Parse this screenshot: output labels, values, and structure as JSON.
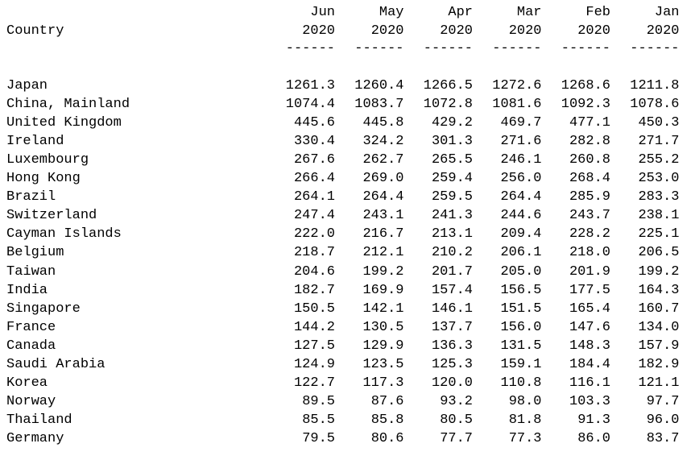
{
  "header": {
    "country": "Country",
    "columns": [
      {
        "month": "Jun",
        "year": "2020"
      },
      {
        "month": "May",
        "year": "2020"
      },
      {
        "month": "Apr",
        "year": "2020"
      },
      {
        "month": "Mar",
        "year": "2020"
      },
      {
        "month": "Feb",
        "year": "2020"
      },
      {
        "month": "Jan",
        "year": "2020"
      }
    ],
    "separator": "------"
  },
  "table": {
    "rows": [
      [
        "Japan",
        "1261.3",
        "1260.4",
        "1266.5",
        "1272.6",
        "1268.6",
        "1211.8"
      ],
      [
        "China, Mainland",
        "1074.4",
        "1083.7",
        "1072.8",
        "1081.6",
        "1092.3",
        "1078.6"
      ],
      [
        "United Kingdom",
        "445.6",
        "445.8",
        "429.2",
        "469.7",
        "477.1",
        "450.3"
      ],
      [
        "Ireland",
        "330.4",
        "324.2",
        "301.3",
        "271.6",
        "282.8",
        "271.7"
      ],
      [
        "Luxembourg",
        "267.6",
        "262.7",
        "265.5",
        "246.1",
        "260.8",
        "255.2"
      ],
      [
        "Hong Kong",
        "266.4",
        "269.0",
        "259.4",
        "256.0",
        "268.4",
        "253.0"
      ],
      [
        "Brazil",
        "264.1",
        "264.4",
        "259.5",
        "264.4",
        "285.9",
        "283.3"
      ],
      [
        "Switzerland",
        "247.4",
        "243.1",
        "241.3",
        "244.6",
        "243.7",
        "238.1"
      ],
      [
        "Cayman Islands",
        "222.0",
        "216.7",
        "213.1",
        "209.4",
        "228.2",
        "225.1"
      ],
      [
        "Belgium",
        "218.7",
        "212.1",
        "210.2",
        "206.1",
        "218.0",
        "206.5"
      ],
      [
        "Taiwan",
        "204.6",
        "199.2",
        "201.7",
        "205.0",
        "201.9",
        "199.2"
      ],
      [
        "India",
        "182.7",
        "169.9",
        "157.4",
        "156.5",
        "177.5",
        "164.3"
      ],
      [
        "Singapore",
        "150.5",
        "142.1",
        "146.1",
        "151.5",
        "165.4",
        "160.7"
      ],
      [
        "France",
        "144.2",
        "130.5",
        "137.7",
        "156.0",
        "147.6",
        "134.0"
      ],
      [
        "Canada",
        "127.5",
        "129.9",
        "136.3",
        "131.5",
        "148.3",
        "157.9"
      ],
      [
        "Saudi Arabia",
        "124.9",
        "123.5",
        "125.3",
        "159.1",
        "184.4",
        "182.9"
      ],
      [
        "Korea",
        "122.7",
        "117.3",
        "120.0",
        "110.8",
        "116.1",
        "121.1"
      ],
      [
        "Norway",
        "89.5",
        "87.6",
        "93.2",
        "98.0",
        "103.3",
        "97.7"
      ],
      [
        "Thailand",
        "85.5",
        "85.8",
        "80.5",
        "81.8",
        "91.3",
        "96.0"
      ],
      [
        "Germany",
        "79.5",
        "80.6",
        "77.7",
        "77.3",
        "86.0",
        "83.7"
      ]
    ]
  }
}
